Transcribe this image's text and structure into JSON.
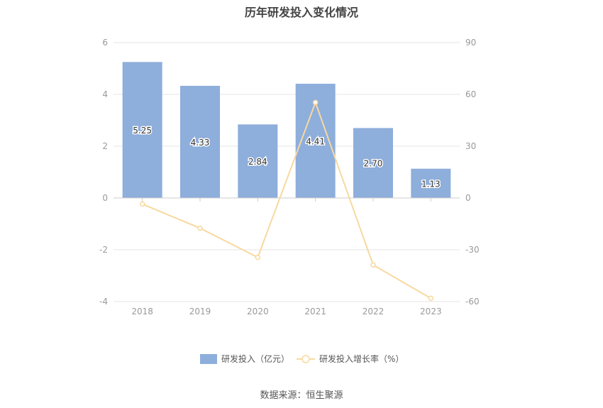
{
  "chart_data": {
    "type": "bar",
    "title": "历年研发投入变化情况",
    "categories": [
      "2018",
      "2019",
      "2020",
      "2021",
      "2022",
      "2023"
    ],
    "series": [
      {
        "name": "研发投入（亿元）",
        "type": "bar",
        "axis": "left",
        "values": [
          5.25,
          4.33,
          2.84,
          4.41,
          2.7,
          1.13
        ],
        "labels": [
          "5.25",
          "4.33",
          "2.84",
          "4.41",
          "2.70",
          "1.13"
        ],
        "color": "#8eaedb"
      },
      {
        "name": "研发投入增长率（%）",
        "type": "line",
        "axis": "right",
        "values": [
          -3.5,
          -17.5,
          -34.4,
          55.3,
          -38.8,
          -58.1
        ],
        "color": "#f7d9a0"
      }
    ],
    "y_left": {
      "min": -4,
      "max": 6,
      "ticks": [
        "-4",
        "-2",
        "0",
        "2",
        "4",
        "6"
      ]
    },
    "y_right": {
      "min": -60,
      "max": 90,
      "ticks": [
        "-60",
        "-30",
        "0",
        "30",
        "60",
        "90"
      ]
    },
    "grid": true,
    "legend_position": "bottom-center"
  },
  "footer": {
    "source": "数据来源：恒生聚源"
  }
}
